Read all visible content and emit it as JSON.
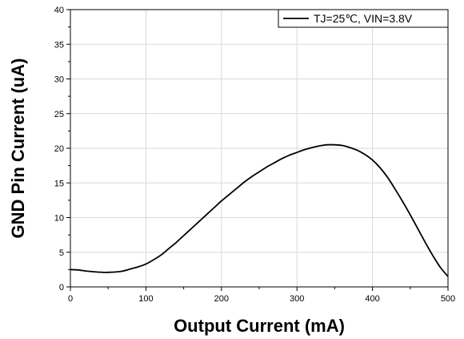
{
  "chart_data": {
    "type": "line",
    "title": "",
    "xlabel": "Output Current (mA)",
    "ylabel": "GND Pin Current (uA)",
    "xlim": [
      0,
      500
    ],
    "ylim": [
      0,
      40
    ],
    "x_ticks": [
      0,
      100,
      200,
      300,
      400,
      500
    ],
    "y_ticks": [
      0,
      5,
      10,
      15,
      20,
      25,
      30,
      35,
      40
    ],
    "grid": true,
    "legend_position": "top-right",
    "series": [
      {
        "name": "TJ=25℃, VIN=3.8V",
        "color": "#000000",
        "x": [
          0,
          10,
          20,
          30,
          40,
          50,
          60,
          70,
          80,
          90,
          100,
          110,
          120,
          130,
          140,
          150,
          160,
          170,
          180,
          190,
          200,
          210,
          220,
          230,
          240,
          250,
          260,
          270,
          280,
          290,
          300,
          310,
          320,
          330,
          340,
          350,
          360,
          370,
          380,
          390,
          400,
          410,
          420,
          430,
          440,
          450,
          460,
          470,
          480,
          490,
          500
        ],
        "y": [
          2.5,
          2.45,
          2.3,
          2.2,
          2.12,
          2.1,
          2.15,
          2.3,
          2.6,
          2.9,
          3.3,
          3.9,
          4.6,
          5.5,
          6.4,
          7.4,
          8.4,
          9.4,
          10.4,
          11.4,
          12.4,
          13.3,
          14.2,
          15.1,
          15.9,
          16.6,
          17.3,
          17.9,
          18.5,
          19.0,
          19.4,
          19.8,
          20.1,
          20.35,
          20.5,
          20.5,
          20.4,
          20.1,
          19.7,
          19.1,
          18.3,
          17.2,
          15.8,
          14.1,
          12.3,
          10.4,
          8.4,
          6.4,
          4.5,
          2.8,
          1.5
        ]
      }
    ]
  }
}
